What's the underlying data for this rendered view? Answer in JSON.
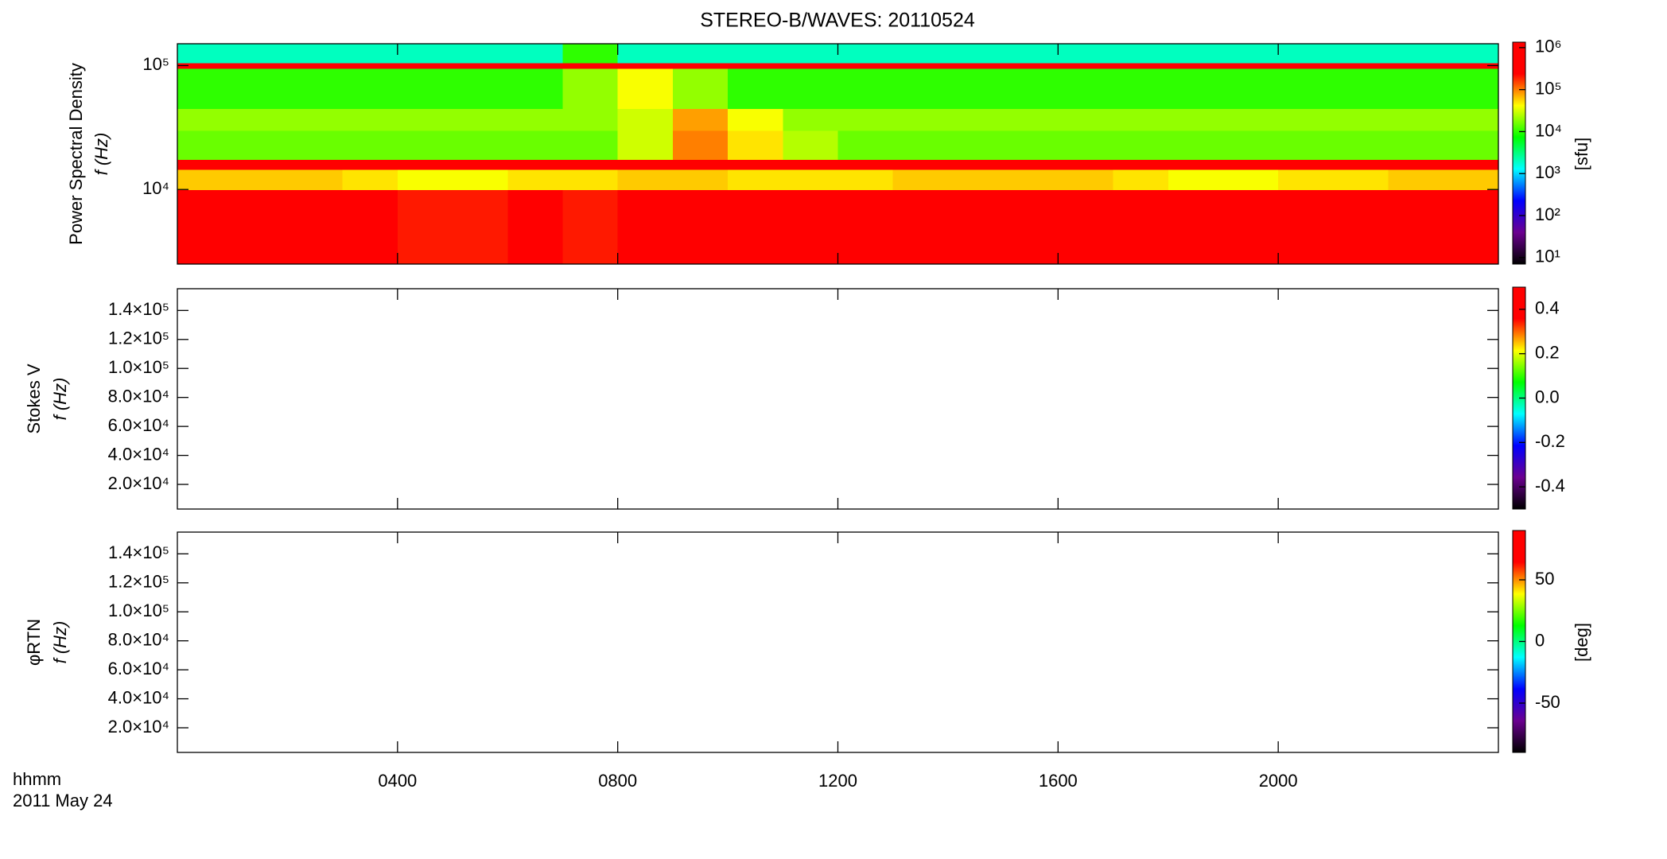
{
  "chart_data": {
    "type": "spectrogram",
    "title": "STEREO-B/WAVES: 20110524",
    "xlim": [
      0,
      24
    ],
    "xticks": [
      {
        "value": 4,
        "label": "0400"
      },
      {
        "value": 8,
        "label": "0800"
      },
      {
        "value": 12,
        "label": "1200"
      },
      {
        "value": 16,
        "label": "1600"
      },
      {
        "value": 20,
        "label": "2000"
      }
    ],
    "x_label": "hhmm",
    "date_label": "2011 May 24",
    "colormap": [
      "#000000",
      "#6b0090",
      "#0000ff",
      "#00ffff",
      "#00ff00",
      "#ffff00",
      "#ff0000",
      "#ff0000"
    ],
    "panels": [
      {
        "type": "heatmap",
        "ylabel": [
          "Power Spectral Density",
          "f (Hz)"
        ],
        "yscale": "log",
        "ylim": [
          2500,
          150000
        ],
        "yticks": [
          {
            "value": 10000,
            "label": "10⁴"
          },
          {
            "value": 100000,
            "label": "10⁵"
          }
        ],
        "cscale": "log",
        "clim": [
          7,
          1350000
        ],
        "cticks": [
          {
            "value": 10,
            "label": "10¹"
          },
          {
            "value": 100,
            "label": "10²"
          },
          {
            "value": 1000,
            "label": "10³"
          },
          {
            "value": 10000,
            "label": "10⁴"
          },
          {
            "value": 100000,
            "label": "10⁵"
          },
          {
            "value": 1000000,
            "label": "10⁶"
          }
        ],
        "clabel": "[sfu]",
        "x_edges": [
          0,
          1,
          2,
          3,
          4,
          5,
          6,
          7,
          8,
          9,
          10,
          11,
          12,
          13,
          14,
          15,
          16,
          17,
          18,
          19,
          20,
          21,
          22,
          23,
          24
        ],
        "y_edges": [
          2500,
          10000,
          14500,
          17500,
          30000,
          45000,
          95000,
          105000,
          150000
        ],
        "z": [
          [
            1000000,
            1000000,
            1000000,
            300000,
            200000,
            200000,
            300000,
            200000,
            1000000,
            1000000,
            400000,
            300000,
            600000,
            1000000,
            1000000,
            1000000,
            1000000,
            800000,
            400000,
            300000,
            500000,
            800000,
            1000000,
            1000000
          ],
          [
            60000,
            60000,
            60000,
            50000,
            40000,
            40000,
            50000,
            50000,
            60000,
            60000,
            50000,
            50000,
            50000,
            60000,
            60000,
            60000,
            60000,
            50000,
            40000,
            40000,
            50000,
            50000,
            60000,
            60000
          ],
          [
            1000000,
            1000000,
            1000000,
            1000000,
            1000000,
            1000000,
            1000000,
            1000000,
            1000000,
            1000000,
            1000000,
            1000000,
            1000000,
            1000000,
            1000000,
            1000000,
            1000000,
            1000000,
            1000000,
            1000000,
            1000000,
            1000000,
            1000000,
            1000000
          ],
          [
            15000,
            15000,
            15000,
            15000,
            15000,
            15000,
            15000,
            15000,
            30000,
            100000,
            50000,
            25000,
            15000,
            15000,
            15000,
            15000,
            15000,
            15000,
            15000,
            15000,
            15000,
            15000,
            15000,
            15000
          ],
          [
            20000,
            20000,
            20000,
            20000,
            20000,
            20000,
            20000,
            20000,
            30000,
            80000,
            40000,
            20000,
            20000,
            20000,
            20000,
            20000,
            20000,
            20000,
            20000,
            20000,
            20000,
            20000,
            20000,
            20000
          ],
          [
            10000,
            10000,
            10000,
            10000,
            10000,
            10000,
            10000,
            20000,
            40000,
            20000,
            10000,
            10000,
            10000,
            10000,
            10000,
            10000,
            10000,
            10000,
            10000,
            10000,
            10000,
            10000,
            10000,
            10000
          ],
          [
            1000000,
            1000000,
            1000000,
            1000000,
            1000000,
            1000000,
            1000000,
            1000000,
            1000000,
            1000000,
            1000000,
            1000000,
            1000000,
            1000000,
            1000000,
            1000000,
            1000000,
            1000000,
            1000000,
            1000000,
            1000000,
            1000000,
            1000000,
            1000000
          ],
          [
            2000,
            2000,
            2000,
            2000,
            2000,
            2000,
            2000,
            10000,
            2000,
            2000,
            2000,
            2000,
            2000,
            2000,
            2000,
            2000,
            2000,
            2000,
            2000,
            2000,
            2000,
            2000,
            2000,
            2000
          ]
        ]
      },
      {
        "type": "heatmap",
        "ylabel": [
          "Stokes V",
          "f (Hz)"
        ],
        "yscale": "linear",
        "ylim": [
          3000,
          155000
        ],
        "yticks": [
          {
            "value": 20000,
            "label": "2.0×10⁴"
          },
          {
            "value": 40000,
            "label": "4.0×10⁴"
          },
          {
            "value": 60000,
            "label": "6.0×10⁴"
          },
          {
            "value": 80000,
            "label": "8.0×10⁴"
          },
          {
            "value": 100000,
            "label": "1.0×10⁵"
          },
          {
            "value": 120000,
            "label": "1.2×10⁵"
          },
          {
            "value": 140000,
            "label": "1.4×10⁵"
          }
        ],
        "cscale": "linear",
        "clim": [
          -0.5,
          0.5
        ],
        "cticks": [
          -0.4,
          -0.2,
          {
            "value": 0,
            "label": "0.0"
          },
          0.2,
          0.4
        ]
      },
      {
        "type": "heatmap",
        "ylabel": [
          "φRTN",
          "f (Hz)"
        ],
        "yscale": "linear",
        "ylim": [
          3000,
          155000
        ],
        "yticks": [
          {
            "value": 20000,
            "label": "2.0×10⁴"
          },
          {
            "value": 40000,
            "label": "4.0×10⁴"
          },
          {
            "value": 60000,
            "label": "6.0×10⁴"
          },
          {
            "value": 80000,
            "label": "8.0×10⁴"
          },
          {
            "value": 100000,
            "label": "1.0×10⁵"
          },
          {
            "value": 120000,
            "label": "1.2×10⁵"
          },
          {
            "value": 140000,
            "label": "1.4×10⁵"
          }
        ],
        "cscale": "linear",
        "clim": [
          -90,
          90
        ],
        "cticks": [
          -50,
          0,
          50
        ],
        "clabel": "[deg]"
      }
    ]
  }
}
